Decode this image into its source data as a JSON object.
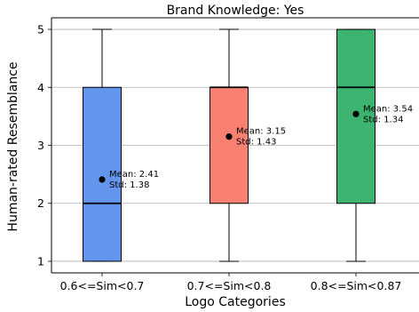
{
  "chart_data": {
    "type": "box",
    "title": "Brand Knowledge: Yes",
    "xlabel": "Logo Categories",
    "ylabel": "Human-rated Resemblance",
    "categories": [
      "0.6<=Sim<0.7",
      "0.7<=Sim<0.8",
      "0.8<=Sim<0.87"
    ],
    "ylim": [
      0.8,
      5.2
    ],
    "yticks": [
      1,
      2,
      3,
      4,
      5
    ],
    "grid": "horizontal",
    "boxes": [
      {
        "category": "0.6<=Sim<0.7",
        "whisker_low": 1,
        "q1": 1,
        "median": 2,
        "q3": 4,
        "whisker_high": 5,
        "mean": 2.41,
        "std": 1.38,
        "color": "#6495ED",
        "mean_label": "Mean: 2.41",
        "std_label": "Std: 1.38"
      },
      {
        "category": "0.7<=Sim<0.8",
        "whisker_low": 1,
        "q1": 2,
        "median": 4,
        "q3": 4,
        "whisker_high": 5,
        "mean": 3.15,
        "std": 1.43,
        "color": "#FA8072",
        "mean_label": "Mean: 3.15",
        "std_label": "Std: 1.43"
      },
      {
        "category": "0.8<=Sim<0.87",
        "whisker_low": 1,
        "q1": 2,
        "median": 4,
        "q3": 5,
        "whisker_high": 5,
        "mean": 3.54,
        "std": 1.34,
        "color": "#3CB371",
        "mean_label": "Mean: 3.54",
        "std_label": "Std: 1.34"
      }
    ]
  }
}
